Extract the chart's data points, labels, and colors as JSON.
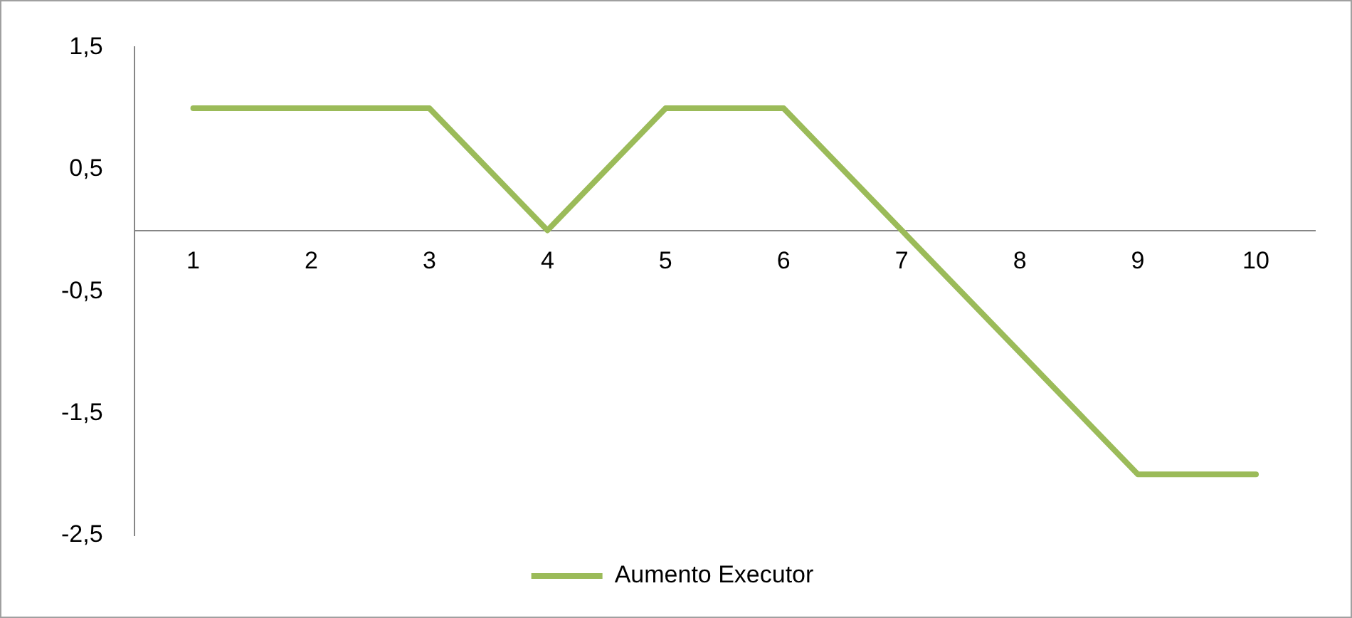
{
  "chart_data": {
    "type": "line",
    "categories": [
      "1",
      "2",
      "3",
      "4",
      "5",
      "6",
      "7",
      "8",
      "9",
      "10"
    ],
    "series": [
      {
        "name": "Aumento Executor",
        "color": "#9bbb59",
        "values": [
          1,
          1,
          1,
          0,
          1,
          1,
          0,
          -1,
          -2,
          -2
        ]
      }
    ],
    "ylim": [
      -2.5,
      1.5
    ],
    "yticks": [
      {
        "value": -2.5,
        "label": "-2,5"
      },
      {
        "value": -1.5,
        "label": "-1,5"
      },
      {
        "value": -0.5,
        "label": "-0,5"
      },
      {
        "value": 0.5,
        "label": "0,5"
      },
      {
        "value": 1.5,
        "label": "1,5"
      }
    ],
    "legend": "bottom",
    "marker": "none",
    "line_style": "solid",
    "grid": false
  }
}
